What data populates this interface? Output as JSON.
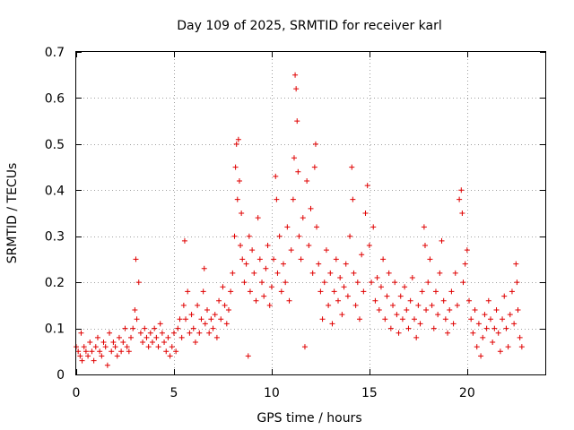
{
  "chart_data": {
    "type": "scatter",
    "title": "Day 109 of 2025, SRMTID for receiver karl",
    "xlabel": "GPS time / hours",
    "ylabel": "SRMTID / TECUs",
    "xlim": [
      0,
      24
    ],
    "ylim": [
      0,
      0.7
    ],
    "x_ticks": [
      0,
      5,
      10,
      15,
      20
    ],
    "x_tick_labels": [
      "0",
      "5",
      "10",
      "15",
      "20"
    ],
    "y_ticks": [
      0,
      0.1,
      0.2,
      0.3,
      0.4,
      0.5,
      0.6,
      0.7
    ],
    "y_tick_labels": [
      "0",
      "0.1",
      "0.2",
      "0.3",
      "0.4",
      "0.5",
      "0.6",
      "0.7"
    ],
    "grid": true,
    "marker": "+",
    "marker_color": "#e00000",
    "series": [
      {
        "name": "SRMTID",
        "points": [
          [
            0.0,
            0.06
          ],
          [
            0.1,
            0.05
          ],
          [
            0.2,
            0.04
          ],
          [
            0.25,
            0.09
          ],
          [
            0.3,
            0.03
          ],
          [
            0.4,
            0.06
          ],
          [
            0.5,
            0.05
          ],
          [
            0.6,
            0.04
          ],
          [
            0.7,
            0.07
          ],
          [
            0.8,
            0.05
          ],
          [
            0.9,
            0.03
          ],
          [
            1.0,
            0.06
          ],
          [
            1.1,
            0.08
          ],
          [
            1.2,
            0.05
          ],
          [
            1.3,
            0.04
          ],
          [
            1.4,
            0.07
          ],
          [
            1.5,
            0.06
          ],
          [
            1.6,
            0.02
          ],
          [
            1.7,
            0.09
          ],
          [
            1.8,
            0.05
          ],
          [
            1.9,
            0.07
          ],
          [
            2.0,
            0.06
          ],
          [
            2.1,
            0.04
          ],
          [
            2.2,
            0.08
          ],
          [
            2.3,
            0.05
          ],
          [
            2.4,
            0.07
          ],
          [
            2.5,
            0.1
          ],
          [
            2.6,
            0.06
          ],
          [
            2.7,
            0.05
          ],
          [
            2.8,
            0.08
          ],
          [
            2.9,
            0.1
          ],
          [
            3.0,
            0.14
          ],
          [
            3.05,
            0.25
          ],
          [
            3.1,
            0.12
          ],
          [
            3.2,
            0.2
          ],
          [
            3.3,
            0.09
          ],
          [
            3.4,
            0.07
          ],
          [
            3.5,
            0.1
          ],
          [
            3.6,
            0.08
          ],
          [
            3.7,
            0.06
          ],
          [
            3.8,
            0.09
          ],
          [
            3.9,
            0.07
          ],
          [
            4.0,
            0.1
          ],
          [
            4.1,
            0.08
          ],
          [
            4.2,
            0.06
          ],
          [
            4.3,
            0.11
          ],
          [
            4.4,
            0.09
          ],
          [
            4.5,
            0.07
          ],
          [
            4.6,
            0.05
          ],
          [
            4.7,
            0.08
          ],
          [
            4.8,
            0.04
          ],
          [
            4.9,
            0.06
          ],
          [
            5.0,
            0.09
          ],
          [
            5.1,
            0.05
          ],
          [
            5.2,
            0.1
          ],
          [
            5.3,
            0.12
          ],
          [
            5.4,
            0.08
          ],
          [
            5.5,
            0.15
          ],
          [
            5.55,
            0.29
          ],
          [
            5.6,
            0.12
          ],
          [
            5.7,
            0.18
          ],
          [
            5.8,
            0.09
          ],
          [
            5.9,
            0.13
          ],
          [
            6.0,
            0.1
          ],
          [
            6.1,
            0.07
          ],
          [
            6.2,
            0.15
          ],
          [
            6.3,
            0.09
          ],
          [
            6.4,
            0.12
          ],
          [
            6.5,
            0.18
          ],
          [
            6.55,
            0.23
          ],
          [
            6.6,
            0.11
          ],
          [
            6.7,
            0.14
          ],
          [
            6.8,
            0.09
          ],
          [
            6.9,
            0.12
          ],
          [
            7.0,
            0.1
          ],
          [
            7.1,
            0.13
          ],
          [
            7.2,
            0.08
          ],
          [
            7.3,
            0.16
          ],
          [
            7.4,
            0.12
          ],
          [
            7.5,
            0.19
          ],
          [
            7.6,
            0.15
          ],
          [
            7.7,
            0.11
          ],
          [
            7.8,
            0.14
          ],
          [
            7.9,
            0.18
          ],
          [
            8.0,
            0.22
          ],
          [
            8.1,
            0.3
          ],
          [
            8.15,
            0.45
          ],
          [
            8.2,
            0.5
          ],
          [
            8.25,
            0.38
          ],
          [
            8.3,
            0.51
          ],
          [
            8.35,
            0.42
          ],
          [
            8.4,
            0.28
          ],
          [
            8.45,
            0.35
          ],
          [
            8.5,
            0.25
          ],
          [
            8.6,
            0.2
          ],
          [
            8.7,
            0.24
          ],
          [
            8.8,
            0.04
          ],
          [
            8.85,
            0.3
          ],
          [
            8.9,
            0.18
          ],
          [
            9.0,
            0.27
          ],
          [
            9.1,
            0.22
          ],
          [
            9.2,
            0.16
          ],
          [
            9.3,
            0.34
          ],
          [
            9.4,
            0.25
          ],
          [
            9.5,
            0.2
          ],
          [
            9.6,
            0.17
          ],
          [
            9.7,
            0.23
          ],
          [
            9.8,
            0.28
          ],
          [
            9.9,
            0.15
          ],
          [
            10.0,
            0.19
          ],
          [
            10.1,
            0.25
          ],
          [
            10.2,
            0.43
          ],
          [
            10.25,
            0.38
          ],
          [
            10.3,
            0.22
          ],
          [
            10.4,
            0.3
          ],
          [
            10.5,
            0.18
          ],
          [
            10.6,
            0.24
          ],
          [
            10.7,
            0.2
          ],
          [
            10.8,
            0.32
          ],
          [
            10.9,
            0.16
          ],
          [
            11.0,
            0.27
          ],
          [
            11.1,
            0.38
          ],
          [
            11.15,
            0.47
          ],
          [
            11.2,
            0.65
          ],
          [
            11.25,
            0.62
          ],
          [
            11.3,
            0.55
          ],
          [
            11.35,
            0.44
          ],
          [
            11.4,
            0.3
          ],
          [
            11.5,
            0.25
          ],
          [
            11.6,
            0.34
          ],
          [
            11.7,
            0.06
          ],
          [
            11.8,
            0.42
          ],
          [
            11.9,
            0.28
          ],
          [
            12.0,
            0.36
          ],
          [
            12.1,
            0.22
          ],
          [
            12.2,
            0.45
          ],
          [
            12.25,
            0.5
          ],
          [
            12.3,
            0.32
          ],
          [
            12.4,
            0.24
          ],
          [
            12.5,
            0.18
          ],
          [
            12.6,
            0.12
          ],
          [
            12.7,
            0.2
          ],
          [
            12.8,
            0.27
          ],
          [
            12.9,
            0.15
          ],
          [
            13.0,
            0.22
          ],
          [
            13.1,
            0.11
          ],
          [
            13.2,
            0.18
          ],
          [
            13.3,
            0.25
          ],
          [
            13.4,
            0.16
          ],
          [
            13.5,
            0.21
          ],
          [
            13.6,
            0.13
          ],
          [
            13.7,
            0.19
          ],
          [
            13.8,
            0.24
          ],
          [
            13.9,
            0.17
          ],
          [
            14.0,
            0.3
          ],
          [
            14.1,
            0.45
          ],
          [
            14.15,
            0.38
          ],
          [
            14.2,
            0.22
          ],
          [
            14.3,
            0.15
          ],
          [
            14.4,
            0.2
          ],
          [
            14.5,
            0.12
          ],
          [
            14.6,
            0.26
          ],
          [
            14.7,
            0.18
          ],
          [
            14.8,
            0.35
          ],
          [
            14.9,
            0.41
          ],
          [
            15.0,
            0.28
          ],
          [
            15.1,
            0.2
          ],
          [
            15.2,
            0.32
          ],
          [
            15.3,
            0.16
          ],
          [
            15.4,
            0.21
          ],
          [
            15.5,
            0.14
          ],
          [
            15.6,
            0.19
          ],
          [
            15.7,
            0.25
          ],
          [
            15.8,
            0.12
          ],
          [
            15.9,
            0.17
          ],
          [
            16.0,
            0.22
          ],
          [
            16.1,
            0.1
          ],
          [
            16.2,
            0.15
          ],
          [
            16.3,
            0.2
          ],
          [
            16.4,
            0.13
          ],
          [
            16.5,
            0.09
          ],
          [
            16.6,
            0.17
          ],
          [
            16.7,
            0.12
          ],
          [
            16.8,
            0.19
          ],
          [
            16.9,
            0.14
          ],
          [
            17.0,
            0.1
          ],
          [
            17.1,
            0.16
          ],
          [
            17.2,
            0.21
          ],
          [
            17.3,
            0.12
          ],
          [
            17.4,
            0.08
          ],
          [
            17.5,
            0.15
          ],
          [
            17.6,
            0.11
          ],
          [
            17.7,
            0.18
          ],
          [
            17.8,
            0.32
          ],
          [
            17.85,
            0.28
          ],
          [
            17.9,
            0.14
          ],
          [
            18.0,
            0.2
          ],
          [
            18.1,
            0.25
          ],
          [
            18.2,
            0.15
          ],
          [
            18.3,
            0.1
          ],
          [
            18.4,
            0.18
          ],
          [
            18.5,
            0.13
          ],
          [
            18.6,
            0.22
          ],
          [
            18.7,
            0.29
          ],
          [
            18.8,
            0.16
          ],
          [
            18.9,
            0.12
          ],
          [
            19.0,
            0.09
          ],
          [
            19.1,
            0.14
          ],
          [
            19.2,
            0.18
          ],
          [
            19.3,
            0.11
          ],
          [
            19.4,
            0.22
          ],
          [
            19.5,
            0.15
          ],
          [
            19.6,
            0.38
          ],
          [
            19.7,
            0.4
          ],
          [
            19.75,
            0.35
          ],
          [
            19.8,
            0.2
          ],
          [
            19.9,
            0.24
          ],
          [
            20.0,
            0.27
          ],
          [
            20.1,
            0.16
          ],
          [
            20.2,
            0.12
          ],
          [
            20.3,
            0.09
          ],
          [
            20.4,
            0.14
          ],
          [
            20.5,
            0.06
          ],
          [
            20.6,
            0.11
          ],
          [
            20.7,
            0.04
          ],
          [
            20.8,
            0.08
          ],
          [
            20.9,
            0.13
          ],
          [
            21.0,
            0.1
          ],
          [
            21.1,
            0.16
          ],
          [
            21.2,
            0.12
          ],
          [
            21.3,
            0.07
          ],
          [
            21.4,
            0.1
          ],
          [
            21.5,
            0.14
          ],
          [
            21.6,
            0.09
          ],
          [
            21.7,
            0.05
          ],
          [
            21.8,
            0.12
          ],
          [
            21.9,
            0.17
          ],
          [
            22.0,
            0.1
          ],
          [
            22.1,
            0.06
          ],
          [
            22.2,
            0.13
          ],
          [
            22.3,
            0.18
          ],
          [
            22.4,
            0.11
          ],
          [
            22.5,
            0.24
          ],
          [
            22.55,
            0.2
          ],
          [
            22.6,
            0.14
          ],
          [
            22.7,
            0.08
          ],
          [
            22.8,
            0.06
          ]
        ]
      }
    ]
  }
}
